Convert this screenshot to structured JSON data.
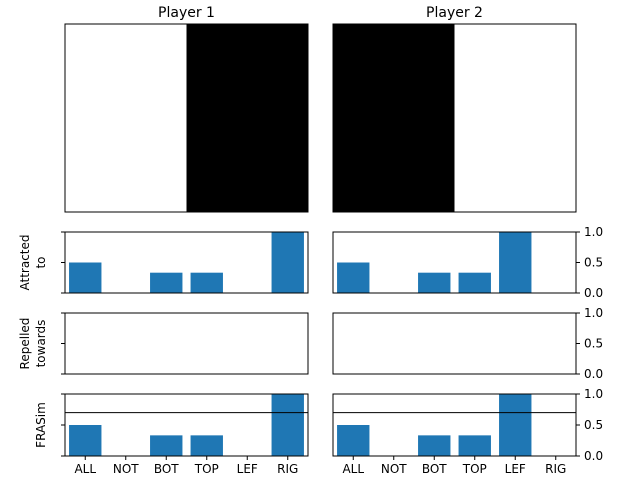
{
  "chart_data": {
    "type": "bar",
    "categories": [
      "ALL",
      "NOT",
      "BOT",
      "TOP",
      "LEF",
      "RIG"
    ],
    "players": [
      {
        "title": "Player 1",
        "board": [
          "white",
          "black"
        ],
        "attracted": [
          0.5,
          0,
          0.333,
          0.333,
          0,
          1.0
        ],
        "repelled": [
          0,
          0,
          0,
          0,
          0,
          0
        ],
        "frasim": [
          0.5,
          0,
          0.333,
          0.333,
          0,
          1.0
        ]
      },
      {
        "title": "Player 2",
        "board": [
          "black",
          "white"
        ],
        "attracted": [
          0.5,
          0,
          0.333,
          0.333,
          1.0,
          0
        ],
        "repelled": [
          0,
          0,
          0,
          0,
          0,
          0
        ],
        "frasim": [
          0.5,
          0,
          0.333,
          0.333,
          1.0,
          0
        ]
      }
    ],
    "row_labels": {
      "attracted": [
        "Attracted",
        "to"
      ],
      "repelled": [
        "Repelled",
        "towards"
      ],
      "frasim": [
        "FRASim"
      ]
    },
    "threshold": 0.7,
    "ylim": [
      0,
      1
    ],
    "yticks": [
      0,
      0.5,
      1
    ],
    "ytick_labels": [
      "0.0",
      "0.5",
      "1.0"
    ],
    "bar_color": "#1f77b4",
    "threshold_color": "#000000"
  }
}
